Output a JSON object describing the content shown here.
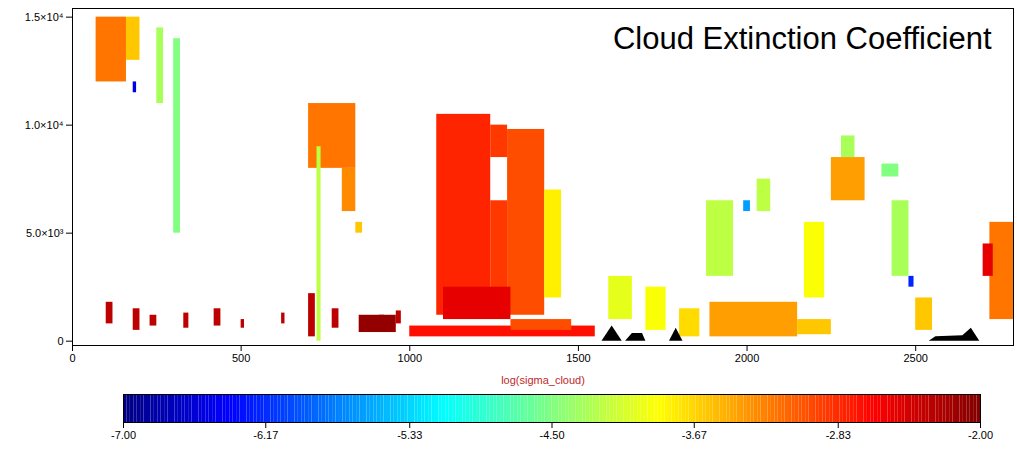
{
  "chart_data": {
    "type": "heatmap",
    "title": "Cloud Extinction Coefficient",
    "x_label": "log(sigma_cloud)",
    "xlim": [
      0,
      2790
    ],
    "xticks": [
      0,
      500,
      1000,
      1500,
      2000,
      2500
    ],
    "ylim": [
      -200,
      15400
    ],
    "yticks": [
      {
        "value": 0,
        "label": "0"
      },
      {
        "value": 5000,
        "label": "5.0×10³"
      },
      {
        "value": 10000,
        "label": "1.0×10⁴"
      },
      {
        "value": 15000,
        "label": "1.5×10⁴"
      }
    ],
    "grid": false,
    "cells": [
      [
        70,
        160,
        12000,
        15000,
        -3.2
      ],
      [
        160,
        200,
        13000,
        15000,
        -3.6
      ],
      [
        180,
        190,
        11500,
        12000,
        -6.5
      ],
      [
        250,
        270,
        11000,
        14500,
        -4.3
      ],
      [
        300,
        320,
        5000,
        14000,
        -4.5
      ],
      [
        700,
        840,
        8000,
        11000,
        -3.2
      ],
      [
        800,
        840,
        6000,
        8000,
        -3.3
      ],
      [
        725,
        737,
        0,
        9000,
        -4.2
      ],
      [
        840,
        860,
        5000,
        5500,
        -3.6
      ],
      [
        100,
        120,
        800,
        1800,
        -2.3
      ],
      [
        180,
        200,
        500,
        1500,
        -2.3
      ],
      [
        230,
        250,
        700,
        1200,
        -2.3
      ],
      [
        330,
        345,
        600,
        1300,
        -2.3
      ],
      [
        420,
        440,
        700,
        1500,
        -2.3
      ],
      [
        500,
        510,
        600,
        1000,
        -2.3
      ],
      [
        620,
        630,
        800,
        1300,
        -2.3
      ],
      [
        700,
        720,
        200,
        2200,
        -2.3
      ],
      [
        770,
        790,
        600,
        1500,
        -2.3
      ],
      [
        910,
        925,
        500,
        1200,
        -2.3
      ],
      [
        960,
        975,
        800,
        1400,
        -2.3
      ],
      [
        850,
        960,
        400,
        1200,
        -2.1
      ],
      [
        1080,
        1240,
        1200,
        10500,
        -2.8
      ],
      [
        1290,
        1400,
        1200,
        9800,
        -3.0
      ],
      [
        1240,
        1290,
        1200,
        6500,
        -2.9
      ],
      [
        1240,
        1290,
        8500,
        10000,
        -2.9
      ],
      [
        1100,
        1300,
        1000,
        2500,
        -2.5
      ],
      [
        1400,
        1450,
        2000,
        7000,
        -3.8
      ],
      [
        1000,
        1550,
        200,
        700,
        -2.7
      ],
      [
        1300,
        1480,
        500,
        1000,
        -3.0
      ],
      [
        1590,
        1660,
        1000,
        3000,
        -4.0
      ],
      [
        1700,
        1760,
        500,
        2500,
        -3.9
      ],
      [
        1800,
        1860,
        200,
        1500,
        -3.7
      ],
      [
        1890,
        2150,
        200,
        1800,
        -3.4
      ],
      [
        2150,
        2250,
        300,
        1000,
        -3.6
      ],
      [
        1880,
        1960,
        3000,
        6500,
        -4.2
      ],
      [
        1990,
        2010,
        6000,
        6500,
        -5.6
      ],
      [
        2030,
        2070,
        6000,
        7500,
        -4.2
      ],
      [
        2170,
        2230,
        2000,
        5500,
        -3.9
      ],
      [
        2250,
        2350,
        6500,
        8500,
        -3.4
      ],
      [
        2280,
        2320,
        8500,
        9500,
        -4.3
      ],
      [
        2400,
        2450,
        7600,
        8200,
        -4.5
      ],
      [
        2430,
        2480,
        3000,
        6500,
        -4.3
      ],
      [
        2480,
        2495,
        2500,
        3000,
        -6.2
      ],
      [
        2500,
        2550,
        500,
        2000,
        -3.6
      ],
      [
        2720,
        2790,
        1000,
        5500,
        -3.2
      ],
      [
        2700,
        2730,
        3000,
        4500,
        -2.5
      ]
    ],
    "surface": [
      [
        [
          1570,
          0
        ],
        [
          1600,
          700
        ],
        [
          1630,
          0
        ]
      ],
      [
        [
          1640,
          0
        ],
        [
          1660,
          350
        ],
        [
          1690,
          350
        ],
        [
          1700,
          0
        ]
      ],
      [
        [
          1770,
          0
        ],
        [
          1790,
          600
        ],
        [
          1810,
          0
        ]
      ],
      [
        [
          2540,
          0
        ],
        [
          2560,
          200
        ],
        [
          2640,
          250
        ],
        [
          2665,
          600
        ],
        [
          2690,
          0
        ]
      ]
    ],
    "colorbar": {
      "range": [
        -7,
        -2
      ],
      "ticks": [
        {
          "value": -7,
          "label": "-7.00"
        },
        {
          "value": -6.17,
          "label": "-6.17"
        },
        {
          "value": -5.33,
          "label": "-5.33"
        },
        {
          "value": -4.5,
          "label": "-4.50"
        },
        {
          "value": -3.67,
          "label": "-3.67"
        },
        {
          "value": -2.83,
          "label": "-2.83"
        },
        {
          "value": -2,
          "label": "-2.00"
        }
      ]
    }
  }
}
